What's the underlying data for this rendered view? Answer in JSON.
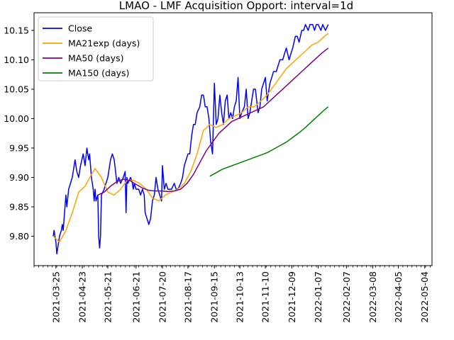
{
  "chart_data": {
    "type": "line",
    "title": "LMAO - LMF Acquisition Opport: interval=1d",
    "xlabel": "",
    "ylabel": "",
    "x_range": [
      "2021-03-01",
      "2022-05-12"
    ],
    "ylim": [
      9.75,
      10.18
    ],
    "grid": false,
    "legend_position": "upper left",
    "x_ticks": [
      "2021-03-25",
      "2021-04-23",
      "2021-05-21",
      "2021-06-21",
      "2021-07-20",
      "2021-08-17",
      "2021-09-15",
      "2021-10-13",
      "2021-11-10",
      "2021-12-09",
      "2022-01-07",
      "2022-02-07",
      "2022-03-08",
      "2022-04-05",
      "2022-05-04"
    ],
    "y_ticks": [
      "9.80",
      "9.85",
      "9.90",
      "9.95",
      "10.00",
      "10.05",
      "10.10",
      "10.15"
    ],
    "series": [
      {
        "name": "Close",
        "color": "#0000ff",
        "points": [
          [
            "2021-03-22",
            9.8
          ],
          [
            "2021-03-23",
            9.81
          ],
          [
            "2021-03-24",
            9.8
          ],
          [
            "2021-03-25",
            9.79
          ],
          [
            "2021-03-26",
            9.77
          ],
          [
            "2021-03-29",
            9.8
          ],
          [
            "2021-03-31",
            9.81
          ],
          [
            "2021-04-01",
            9.82
          ],
          [
            "2021-04-02",
            9.81
          ],
          [
            "2021-04-05",
            9.87
          ],
          [
            "2021-04-06",
            9.85
          ],
          [
            "2021-04-08",
            9.88
          ],
          [
            "2021-04-12",
            9.9
          ],
          [
            "2021-04-14",
            9.92
          ],
          [
            "2021-04-15",
            9.93
          ],
          [
            "2021-04-17",
            9.91
          ],
          [
            "2021-04-19",
            9.9
          ],
          [
            "2021-04-21",
            9.92
          ],
          [
            "2021-04-24",
            9.94
          ],
          [
            "2021-04-26",
            9.92
          ],
          [
            "2021-04-28",
            9.95
          ],
          [
            "2021-04-30",
            9.93
          ],
          [
            "2021-05-01",
            9.94
          ],
          [
            "2021-05-03",
            9.9
          ],
          [
            "2021-05-05",
            9.88
          ],
          [
            "2021-05-06",
            9.86
          ],
          [
            "2021-05-07",
            9.88
          ],
          [
            "2021-05-08",
            9.86
          ],
          [
            "2021-05-10",
            9.87
          ],
          [
            "2021-05-11",
            9.8
          ],
          [
            "2021-05-12",
            9.78
          ],
          [
            "2021-05-13",
            9.8
          ],
          [
            "2021-05-14",
            9.87
          ],
          [
            "2021-05-17",
            9.88
          ],
          [
            "2021-05-19",
            9.89
          ],
          [
            "2021-05-21",
            9.9
          ],
          [
            "2021-05-24",
            9.93
          ],
          [
            "2021-05-26",
            9.94
          ],
          [
            "2021-05-28",
            9.93
          ],
          [
            "2021-05-31",
            9.89
          ],
          [
            "2021-06-02",
            9.9
          ],
          [
            "2021-06-04",
            9.89
          ],
          [
            "2021-06-07",
            9.9
          ],
          [
            "2021-06-09",
            9.91
          ],
          [
            "2021-06-10",
            9.84
          ],
          [
            "2021-06-11",
            9.9
          ],
          [
            "2021-06-12",
            9.89
          ],
          [
            "2021-06-15",
            9.9
          ],
          [
            "2021-06-17",
            9.89
          ],
          [
            "2021-06-18",
            9.88
          ],
          [
            "2021-06-19",
            9.89
          ],
          [
            "2021-06-21",
            9.88
          ],
          [
            "2021-06-24",
            9.88
          ],
          [
            "2021-06-26",
            9.87
          ],
          [
            "2021-06-28",
            9.88
          ],
          [
            "2021-06-30",
            9.87
          ],
          [
            "2021-07-01",
            9.84
          ],
          [
            "2021-07-03",
            9.83
          ],
          [
            "2021-07-05",
            9.82
          ],
          [
            "2021-07-07",
            9.83
          ],
          [
            "2021-07-09",
            9.86
          ],
          [
            "2021-07-11",
            9.87
          ],
          [
            "2021-07-13",
            9.9
          ],
          [
            "2021-07-15",
            9.88
          ],
          [
            "2021-07-17",
            9.87
          ],
          [
            "2021-07-19",
            9.86
          ],
          [
            "2021-07-20",
            9.92
          ],
          [
            "2021-07-22",
            9.88
          ],
          [
            "2021-07-24",
            9.89
          ],
          [
            "2021-07-26",
            9.88
          ],
          [
            "2021-07-28",
            9.88
          ],
          [
            "2021-07-30",
            9.88
          ],
          [
            "2021-08-02",
            9.89
          ],
          [
            "2021-08-04",
            9.88
          ],
          [
            "2021-08-06",
            9.88
          ],
          [
            "2021-08-09",
            9.89
          ],
          [
            "2021-08-11",
            9.9
          ],
          [
            "2021-08-13",
            9.92
          ],
          [
            "2021-08-15",
            9.93
          ],
          [
            "2021-08-17",
            9.94
          ],
          [
            "2021-08-19",
            9.94
          ],
          [
            "2021-08-21",
            9.97
          ],
          [
            "2021-08-23",
            9.99
          ],
          [
            "2021-08-25",
            9.99
          ],
          [
            "2021-08-27",
            10.01
          ],
          [
            "2021-08-30",
            10.02
          ],
          [
            "2021-09-01",
            10.04
          ],
          [
            "2021-09-03",
            10.04
          ],
          [
            "2021-09-05",
            10.02
          ],
          [
            "2021-09-07",
            10.02
          ],
          [
            "2021-09-09",
            10.0
          ],
          [
            "2021-09-11",
            9.96
          ],
          [
            "2021-09-13",
            9.94
          ],
          [
            "2021-09-15",
            10.06
          ],
          [
            "2021-09-17",
            9.99
          ],
          [
            "2021-09-19",
            10.0
          ],
          [
            "2021-09-21",
            10.04
          ],
          [
            "2021-09-23",
            10.01
          ],
          [
            "2021-09-25",
            9.99
          ],
          [
            "2021-09-27",
            10.03
          ],
          [
            "2021-09-29",
            10.04
          ],
          [
            "2021-10-01",
            10.0
          ],
          [
            "2021-10-03",
            10.01
          ],
          [
            "2021-10-05",
            10.0
          ],
          [
            "2021-10-07",
            10.02
          ],
          [
            "2021-10-09",
            10.03
          ],
          [
            "2021-10-11",
            10.07
          ],
          [
            "2021-10-13",
            10.0
          ],
          [
            "2021-10-15",
            10.01
          ],
          [
            "2021-10-18",
            10.02
          ],
          [
            "2021-10-20",
            10.05
          ],
          [
            "2021-10-22",
            10.0
          ],
          [
            "2021-10-24",
            10.01
          ],
          [
            "2021-10-26",
            10.03
          ],
          [
            "2021-10-28",
            10.05
          ],
          [
            "2021-10-30",
            10.05
          ],
          [
            "2021-11-02",
            10.01
          ],
          [
            "2021-11-04",
            10.02
          ],
          [
            "2021-11-06",
            10.05
          ],
          [
            "2021-11-08",
            10.06
          ],
          [
            "2021-11-10",
            10.07
          ],
          [
            "2021-11-12",
            10.03
          ],
          [
            "2021-11-15",
            10.06
          ],
          [
            "2021-11-17",
            10.07
          ],
          [
            "2021-11-19",
            10.08
          ],
          [
            "2021-11-22",
            10.08
          ],
          [
            "2021-11-24",
            10.09
          ],
          [
            "2021-11-26",
            10.1
          ],
          [
            "2021-11-29",
            10.1
          ],
          [
            "2021-12-01",
            10.11
          ],
          [
            "2021-12-03",
            10.12
          ],
          [
            "2021-12-06",
            10.1
          ],
          [
            "2021-12-08",
            10.11
          ],
          [
            "2021-12-10",
            10.12
          ],
          [
            "2021-12-13",
            10.14
          ],
          [
            "2021-12-15",
            10.14
          ],
          [
            "2021-12-17",
            10.13
          ],
          [
            "2021-12-20",
            10.15
          ],
          [
            "2021-12-22",
            10.15
          ],
          [
            "2021-12-24",
            10.16
          ],
          [
            "2021-12-27",
            10.15
          ],
          [
            "2021-12-29",
            10.16
          ],
          [
            "2022-01-01",
            10.16
          ],
          [
            "2022-01-03",
            10.15
          ],
          [
            "2022-01-05",
            10.16
          ],
          [
            "2022-01-07",
            10.16
          ],
          [
            "2022-01-10",
            10.15
          ],
          [
            "2022-01-12",
            10.16
          ],
          [
            "2022-01-15",
            10.15
          ],
          [
            "2022-01-18",
            10.16
          ]
        ]
      },
      {
        "name": "MA21exp (days)",
        "color": "#ffa500",
        "points": [
          [
            "2021-03-22",
            9.8
          ],
          [
            "2021-03-29",
            9.79
          ],
          [
            "2021-04-05",
            9.81
          ],
          [
            "2021-04-12",
            9.84
          ],
          [
            "2021-04-19",
            9.875
          ],
          [
            "2021-04-26",
            9.885
          ],
          [
            "2021-05-03",
            9.905
          ],
          [
            "2021-05-07",
            9.915
          ],
          [
            "2021-05-14",
            9.9
          ],
          [
            "2021-05-21",
            9.875
          ],
          [
            "2021-05-28",
            9.87
          ],
          [
            "2021-06-04",
            9.88
          ],
          [
            "2021-06-11",
            9.895
          ],
          [
            "2021-06-18",
            9.895
          ],
          [
            "2021-06-25",
            9.89
          ],
          [
            "2021-07-02",
            9.88
          ],
          [
            "2021-07-09",
            9.865
          ],
          [
            "2021-07-16",
            9.86
          ],
          [
            "2021-07-23",
            9.87
          ],
          [
            "2021-07-30",
            9.875
          ],
          [
            "2021-08-06",
            9.88
          ],
          [
            "2021-08-13",
            9.89
          ],
          [
            "2021-08-20",
            9.91
          ],
          [
            "2021-08-27",
            9.94
          ],
          [
            "2021-09-03",
            9.98
          ],
          [
            "2021-09-10",
            9.99
          ],
          [
            "2021-09-17",
            9.985
          ],
          [
            "2021-09-24",
            9.99
          ],
          [
            "2021-10-01",
            10.0
          ],
          [
            "2021-10-08",
            10.005
          ],
          [
            "2021-10-15",
            10.01
          ],
          [
            "2021-10-22",
            10.02
          ],
          [
            "2021-10-29",
            10.02
          ],
          [
            "2021-11-05",
            10.03
          ],
          [
            "2021-11-12",
            10.04
          ],
          [
            "2021-11-19",
            10.055
          ],
          [
            "2021-11-26",
            10.07
          ],
          [
            "2021-12-03",
            10.085
          ],
          [
            "2021-12-10",
            10.095
          ],
          [
            "2021-12-17",
            10.105
          ],
          [
            "2021-12-24",
            10.115
          ],
          [
            "2021-12-31",
            10.125
          ],
          [
            "2022-01-07",
            10.13
          ],
          [
            "2022-01-14",
            10.14
          ],
          [
            "2022-01-18",
            10.145
          ]
        ]
      },
      {
        "name": "MA50 (days)",
        "color": "#800080",
        "points": [
          [
            "2021-05-10",
            9.87
          ],
          [
            "2021-05-17",
            9.875
          ],
          [
            "2021-05-24",
            9.885
          ],
          [
            "2021-05-31",
            9.893
          ],
          [
            "2021-06-07",
            9.897
          ],
          [
            "2021-06-14",
            9.895
          ],
          [
            "2021-06-21",
            9.888
          ],
          [
            "2021-06-28",
            9.882
          ],
          [
            "2021-07-05",
            9.878
          ],
          [
            "2021-07-12",
            9.877
          ],
          [
            "2021-07-19",
            9.877
          ],
          [
            "2021-07-26",
            9.876
          ],
          [
            "2021-08-02",
            9.877
          ],
          [
            "2021-08-09",
            9.88
          ],
          [
            "2021-08-16",
            9.89
          ],
          [
            "2021-08-23",
            9.905
          ],
          [
            "2021-08-30",
            9.925
          ],
          [
            "2021-09-06",
            9.945
          ],
          [
            "2021-09-13",
            9.96
          ],
          [
            "2021-09-20",
            9.975
          ],
          [
            "2021-09-27",
            9.985
          ],
          [
            "2021-10-04",
            9.995
          ],
          [
            "2021-10-11",
            10.0
          ],
          [
            "2021-10-18",
            10.005
          ],
          [
            "2021-10-25",
            10.01
          ],
          [
            "2021-11-01",
            10.015
          ],
          [
            "2021-11-08",
            10.02
          ],
          [
            "2021-11-15",
            10.03
          ],
          [
            "2021-11-22",
            10.04
          ],
          [
            "2021-11-29",
            10.05
          ],
          [
            "2021-12-06",
            10.06
          ],
          [
            "2021-12-13",
            10.07
          ],
          [
            "2021-12-20",
            10.08
          ],
          [
            "2021-12-27",
            10.09
          ],
          [
            "2022-01-03",
            10.1
          ],
          [
            "2022-01-10",
            10.11
          ],
          [
            "2022-01-18",
            10.12
          ]
        ]
      },
      {
        "name": "MA150 (days)",
        "color": "#008000",
        "points": [
          [
            "2021-09-10",
            9.902
          ],
          [
            "2021-09-17",
            9.908
          ],
          [
            "2021-09-24",
            9.914
          ],
          [
            "2021-10-01",
            9.918
          ],
          [
            "2021-10-08",
            9.922
          ],
          [
            "2021-10-15",
            9.926
          ],
          [
            "2021-10-22",
            9.93
          ],
          [
            "2021-10-29",
            9.934
          ],
          [
            "2021-11-05",
            9.938
          ],
          [
            "2021-11-12",
            9.942
          ],
          [
            "2021-11-19",
            9.948
          ],
          [
            "2021-11-26",
            9.954
          ],
          [
            "2021-12-03",
            9.96
          ],
          [
            "2021-12-10",
            9.968
          ],
          [
            "2021-12-17",
            9.976
          ],
          [
            "2021-12-24",
            9.985
          ],
          [
            "2021-12-31",
            9.995
          ],
          [
            "2022-01-07",
            10.005
          ],
          [
            "2022-01-14",
            10.015
          ],
          [
            "2022-01-18",
            10.02
          ]
        ]
      }
    ]
  }
}
